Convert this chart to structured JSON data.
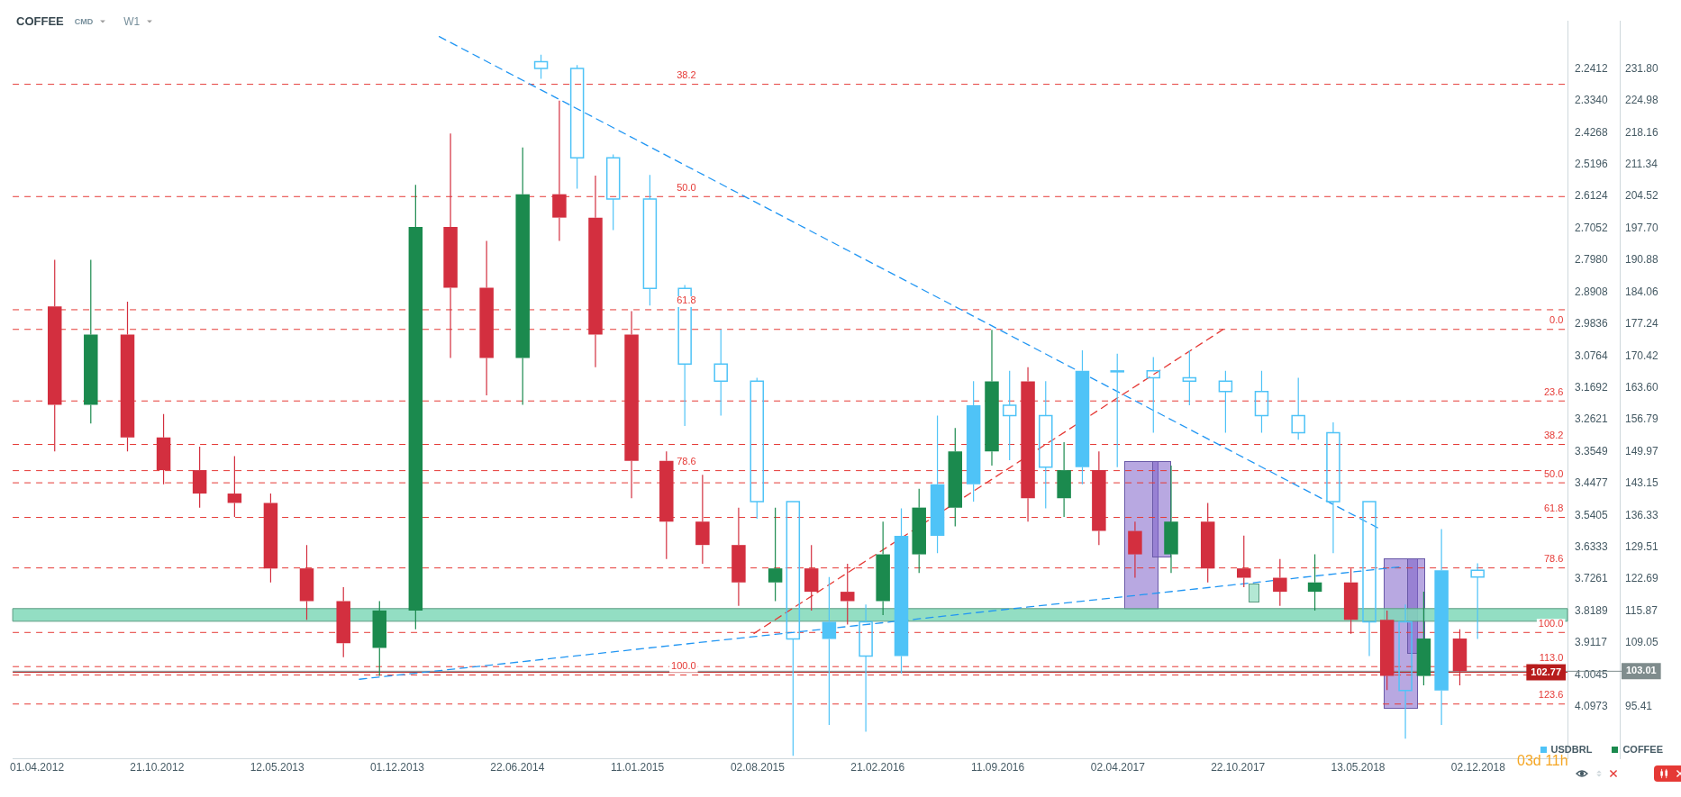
{
  "chart_data": {
    "type": "candlestick",
    "title": "COFFEE",
    "annotations": [
      "CMD",
      "W1",
      "03d 11h",
      {
        "text": "38.2",
        "x": "2015-04-20",
        "y": 228.5
      },
      {
        "text": "50.0",
        "x": "2015-04-20",
        "y": 204.5
      },
      {
        "text": "61.8",
        "x": "2015-04-20",
        "y": 180.3
      },
      {
        "text": "78.6",
        "x": "2015-04-20",
        "y": 145.9
      },
      {
        "text": "100.0",
        "x": "2015-04-20",
        "y": 102.2
      },
      {
        "text": "0.0",
        "x": "2019-04-25",
        "y": 176.1
      },
      {
        "text": "23.6",
        "x": "2019-04-25",
        "y": 160.8
      },
      {
        "text": "38.2",
        "x": "2019-04-25",
        "y": 151.5
      },
      {
        "text": "50.0",
        "x": "2019-04-25",
        "y": 143.3
      },
      {
        "text": "61.8",
        "x": "2019-04-25",
        "y": 135.9
      },
      {
        "text": "78.6",
        "x": "2019-04-25",
        "y": 125.1
      },
      {
        "text": "100.0",
        "x": "2019-04-25",
        "y": 111.3
      },
      {
        "text": "113.0",
        "x": "2019-04-25",
        "y": 104.0
      },
      {
        "text": "123.6",
        "x": "2019-04-25",
        "y": 96.0
      }
    ],
    "xlim": [
      "2012-02-20",
      "2019-05-02"
    ],
    "xticks": [
      {
        "value": "2012-04-01",
        "label": "01.04.2012"
      },
      {
        "value": "2012-10-21",
        "label": "21.10.2012"
      },
      {
        "value": "2013-05-12",
        "label": "12.05.2013"
      },
      {
        "value": "2013-12-01",
        "label": "01.12.2013"
      },
      {
        "value": "2014-06-22",
        "label": "22.06.2014"
      },
      {
        "value": "2015-01-11",
        "label": "11.01.2015"
      },
      {
        "value": "2015-08-02",
        "label": "02.08.2015"
      },
      {
        "value": "2016-02-21",
        "label": "21.02.2016"
      },
      {
        "value": "2016-09-11",
        "label": "11.09.2016"
      },
      {
        "value": "2017-04-02",
        "label": "02.04.2017"
      },
      {
        "value": "2017-10-22",
        "label": "22.10.2017"
      },
      {
        "value": "2018-05-13",
        "label": "13.05.2018"
      },
      {
        "value": "2018-12-02",
        "label": "02.12.2018"
      }
    ],
    "ylim": [
      84.4,
      242.06
    ],
    "yticks": [
      {
        "value": 231.8,
        "label": "231.80"
      },
      224.98,
      218.16,
      211.34,
      204.52,
      {
        "value": 197.7,
        "label": "197.70"
      },
      190.88,
      184.06,
      177.24,
      170.42,
      {
        "value": 163.6,
        "label": "163.60"
      },
      156.79,
      149.97,
      143.15,
      136.33,
      129.51,
      122.69,
      115.87,
      109.05,
      95.41
    ],
    "y2lim": [
      4.2471,
      2.1016
    ],
    "y2ticks": [
      2.2412,
      {
        "value": 2.334,
        "label": "2.3340"
      },
      2.4268,
      2.5196,
      2.6124,
      2.7052,
      {
        "value": 2.798,
        "label": "2.7980"
      },
      2.8908,
      2.9836,
      3.0764,
      3.1692,
      3.2621,
      3.3549,
      3.4477,
      3.5405,
      3.6333,
      3.7261,
      3.8189,
      3.9117,
      4.0045,
      4.0973
    ],
    "legend": "bottom right",
    "series": [
      {
        "name": "USDBRL",
        "axis": "y2",
        "color": "#4fc3f7",
        "x": [
          "2014-08",
          "2014-10",
          "2014-12",
          "2015-02",
          "2015-04",
          "2015-06",
          "2015-08",
          "2015-10",
          "2015-12",
          "2016-02",
          "2016-04",
          "2016-06",
          "2016-08",
          "2016-10",
          "2016-12",
          "2017-02",
          "2017-04",
          "2017-06",
          "2017-08",
          "2017-10",
          "2017-12",
          "2018-02",
          "2018-04",
          "2018-06",
          "2018-08",
          "2018-10",
          "2018-12"
        ],
        "ohlc": [
          [
            2.22,
            2.27,
            2.2,
            2.24
          ],
          [
            2.24,
            2.59,
            2.23,
            2.5
          ],
          [
            2.5,
            2.71,
            2.49,
            2.62
          ],
          [
            2.62,
            2.93,
            2.55,
            2.88
          ],
          [
            2.88,
            3.28,
            2.87,
            3.1
          ],
          [
            3.1,
            3.25,
            3.0,
            3.15
          ],
          [
            3.15,
            3.55,
            3.14,
            3.5
          ],
          [
            3.5,
            4.24,
            3.5,
            3.9
          ],
          [
            3.9,
            4.15,
            3.72,
            3.85
          ],
          [
            3.85,
            4.17,
            3.8,
            3.95
          ],
          [
            3.95,
            4.0,
            3.52,
            3.6
          ],
          [
            3.6,
            3.65,
            3.25,
            3.45
          ],
          [
            3.45,
            3.5,
            3.15,
            3.22
          ],
          [
            3.22,
            3.38,
            3.12,
            3.25
          ],
          [
            3.25,
            3.52,
            3.15,
            3.4
          ],
          [
            3.4,
            3.45,
            3.06,
            3.12
          ],
          [
            3.12,
            3.4,
            3.07,
            3.12
          ],
          [
            3.12,
            3.3,
            3.08,
            3.14
          ],
          [
            3.14,
            3.22,
            3.06,
            3.15
          ],
          [
            3.15,
            3.3,
            3.12,
            3.18
          ],
          [
            3.18,
            3.3,
            3.12,
            3.25
          ],
          [
            3.25,
            3.32,
            3.14,
            3.3
          ],
          [
            3.3,
            3.65,
            3.27,
            3.5
          ],
          [
            3.5,
            3.95,
            3.5,
            3.85
          ],
          [
            3.85,
            4.19,
            3.8,
            4.05
          ],
          [
            4.05,
            4.15,
            3.58,
            3.7
          ],
          [
            3.7,
            3.9,
            3.68,
            3.72
          ]
        ]
      },
      {
        "name": "COFFEE",
        "color": "#1b8a4e",
        "x": [
          "2012-05",
          "2012-07",
          "2012-09",
          "2012-11",
          "2013-01",
          "2013-03",
          "2013-05",
          "2013-07",
          "2013-09",
          "2013-11",
          "2014-01",
          "2014-03",
          "2014-05",
          "2014-07",
          "2014-09",
          "2014-11",
          "2015-01",
          "2015-03",
          "2015-05",
          "2015-07",
          "2015-09",
          "2015-11",
          "2016-01",
          "2016-03",
          "2016-05",
          "2016-07",
          "2016-09",
          "2016-11",
          "2017-01",
          "2017-03",
          "2017-05",
          "2017-07",
          "2017-09",
          "2017-11",
          "2018-01",
          "2018-03",
          "2018-05",
          "2018-07",
          "2018-09",
          "2018-11"
        ],
        "ohlc": [
          [
            181,
            191,
            150,
            160
          ],
          [
            160,
            191,
            156,
            175
          ],
          [
            175,
            182,
            150,
            153
          ],
          [
            153,
            158,
            143,
            146
          ],
          [
            146,
            151,
            138,
            141
          ],
          [
            141,
            149,
            136,
            139
          ],
          [
            139,
            141,
            122,
            125
          ],
          [
            125,
            130,
            114,
            118
          ],
          [
            118,
            121,
            106,
            109
          ],
          [
            108,
            118,
            102,
            116
          ],
          [
            116,
            207,
            112,
            198
          ],
          [
            198,
            218,
            170,
            185
          ],
          [
            185,
            195,
            162,
            170
          ],
          [
            170,
            215,
            160,
            205
          ],
          [
            205,
            225,
            195,
            200
          ],
          [
            200,
            209,
            168,
            175
          ],
          [
            175,
            180,
            140,
            148
          ],
          [
            148,
            150,
            127,
            135
          ],
          [
            135,
            145,
            126,
            130
          ],
          [
            130,
            138,
            117,
            122
          ],
          [
            122,
            138,
            118,
            125
          ],
          [
            125,
            130,
            116,
            120
          ],
          [
            120,
            126,
            113,
            118
          ],
          [
            118,
            135,
            115,
            128
          ],
          [
            128,
            142,
            124,
            138
          ],
          [
            138,
            155,
            134,
            150
          ],
          [
            150,
            176,
            147,
            165
          ],
          [
            165,
            168,
            135,
            140
          ],
          [
            140,
            152,
            136,
            146
          ],
          [
            146,
            150,
            130,
            133
          ],
          [
            133,
            135,
            123,
            128
          ],
          [
            128,
            147,
            124,
            135
          ],
          [
            135,
            139,
            122,
            125
          ],
          [
            125,
            132,
            121,
            123
          ],
          [
            123,
            127,
            117,
            120
          ],
          [
            120,
            128,
            116,
            122
          ],
          [
            122,
            125,
            111,
            114
          ],
          [
            114,
            116,
            99,
            102
          ],
          [
            102,
            120,
            100,
            110
          ],
          [
            110,
            112,
            100,
            103.01
          ]
        ],
        "colors": [
          "#d32f3f",
          "#1b8a4e",
          "#d32f3f",
          "#d32f3f",
          "#d32f3f",
          "#d32f3f",
          "#d32f3f",
          "#d32f3f",
          "#d32f3f",
          "#1b8a4e",
          "#1b8a4e",
          "#d32f3f",
          "#d32f3f",
          "#1b8a4e",
          "#d32f3f",
          "#d32f3f",
          "#d32f3f",
          "#d32f3f",
          "#d32f3f",
          "#d32f3f",
          "#1b8a4e",
          "#d32f3f",
          "#d32f3f",
          "#1b8a4e",
          "#1b8a4e",
          "#1b8a4e",
          "#1b8a4e",
          "#d32f3f",
          "#1b8a4e",
          "#d32f3f",
          "#d32f3f",
          "#1b8a4e",
          "#d32f3f",
          "#d32f3f",
          "#d32f3f",
          "#1b8a4e",
          "#d32f3f",
          "#d32f3f",
          "#1b8a4e",
          "#d32f3f"
        ]
      },
      {
        "type": "line",
        "color": "#2196f3",
        "line_style": "dashed",
        "x": [
          "2014-02-10",
          "2018-06-15"
        ],
        "values": [
          238.7,
          133.7
        ]
      },
      {
        "type": "line",
        "color": "#2196f3",
        "line_style": "dashed",
        "x": [
          "2013-09-28",
          "2018-07-21"
        ],
        "values": [
          101.3,
          125.3
        ]
      },
      {
        "type": "line",
        "color": "#e53935",
        "line_style": "dashed",
        "x": [
          "2015-07-27",
          "2017-09-27"
        ],
        "values": [
          111.1,
          176.1
        ]
      }
    ],
    "bands": [
      {
        "axis": "y",
        "from": 113.7,
        "to": 116.4,
        "color": "#80d8b8"
      }
    ],
    "ref_lines": [
      {
        "axis": "y",
        "value": 228.5,
        "color": "#e53935",
        "line_style": "dashed"
      },
      {
        "axis": "y",
        "value": 204.5,
        "color": "#e53935",
        "line_style": "dashed"
      },
      {
        "axis": "y",
        "value": 180.3,
        "color": "#e53935",
        "line_style": "dashed"
      },
      {
        "axis": "y",
        "value": 145.9,
        "color": "#e53935",
        "line_style": "dashed"
      },
      {
        "axis": "y",
        "value": 102.2,
        "color": "#e53935",
        "line_style": "dashed"
      },
      {
        "axis": "y",
        "value": 176.1,
        "color": "#e53935",
        "line_style": "dashed"
      },
      {
        "axis": "y",
        "value": 160.8,
        "color": "#e53935",
        "line_style": "dashed"
      },
      {
        "axis": "y",
        "value": 151.5,
        "color": "#e53935",
        "line_style": "dashed"
      },
      {
        "axis": "y",
        "value": 143.3,
        "color": "#e53935",
        "line_style": "dashed"
      },
      {
        "axis": "y",
        "value": 135.9,
        "color": "#e53935",
        "line_style": "dashed"
      },
      {
        "axis": "y",
        "value": 125.1,
        "color": "#e53935",
        "line_style": "dashed"
      },
      {
        "axis": "y",
        "value": 111.3,
        "color": "#e53935",
        "line_style": "dashed"
      },
      {
        "axis": "y",
        "value": 104.0,
        "color": "#e53935",
        "line_style": "dashed"
      },
      {
        "axis": "y",
        "value": 96.0,
        "color": "#e53935",
        "line_style": "dashed"
      },
      {
        "axis": "y",
        "value": 103.01,
        "label": "103.01",
        "color": "#7f8c8d",
        "line_style": "solid"
      },
      {
        "axis": "y",
        "value": 102.77,
        "label": "102.77",
        "color": "#b71c1c",
        "line_style": "solid"
      }
    ]
  }
}
